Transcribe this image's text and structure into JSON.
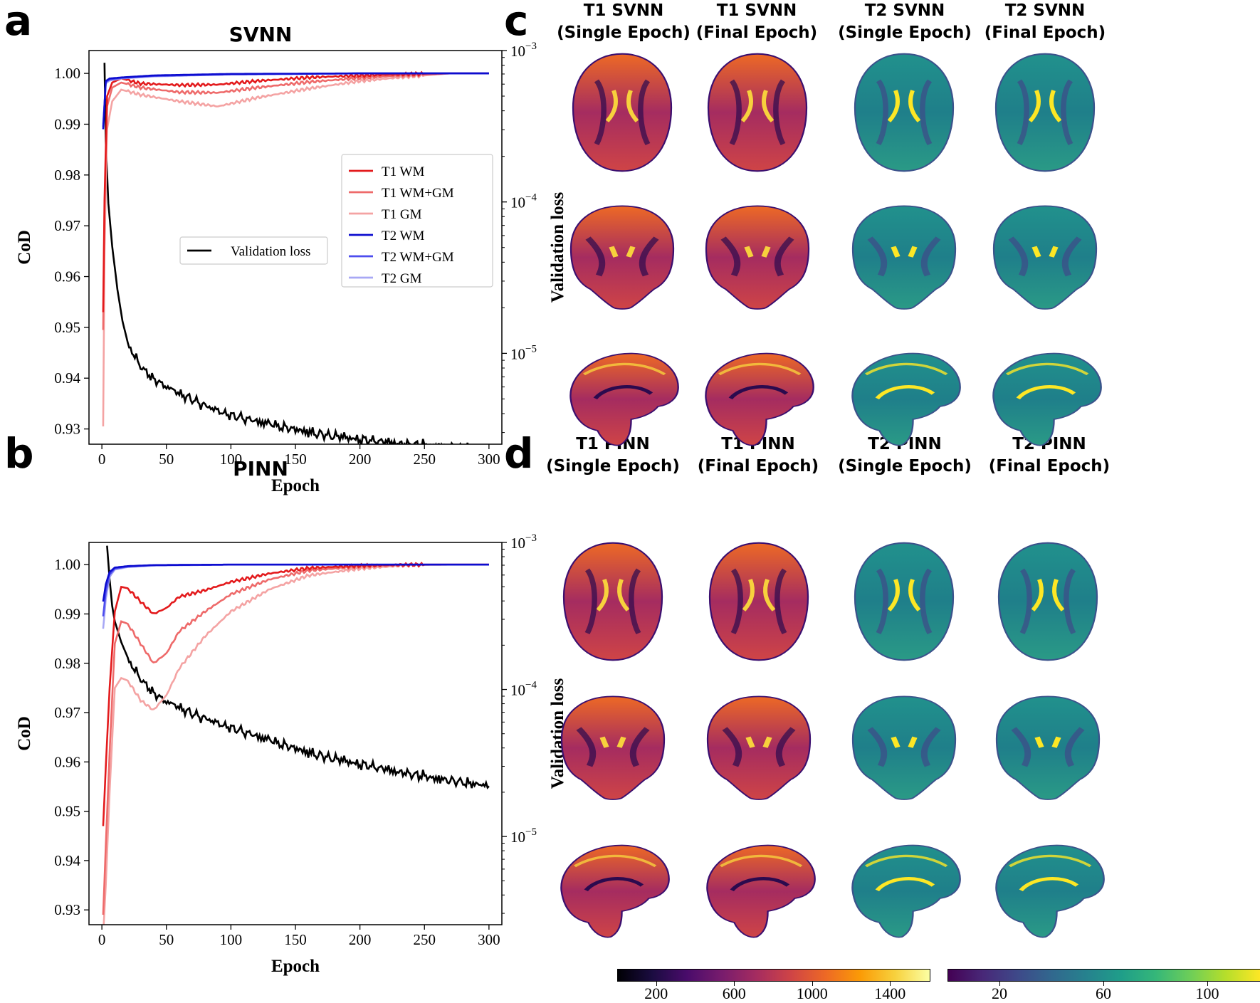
{
  "panels": {
    "a": "a",
    "b": "b",
    "c": "c",
    "d": "d"
  },
  "chart_data": [
    {
      "id": "svnn",
      "type": "line",
      "title": "SVNN",
      "xlabel": "Epoch",
      "ylabel": "CoD",
      "y2label": "Validation loss",
      "xlim": [
        -10,
        310
      ],
      "ylim": [
        0.927,
        1.0045
      ],
      "y2_log_lim": [
        -5.6,
        -3.0
      ],
      "xticks": [
        0,
        50,
        100,
        150,
        200,
        250,
        300
      ],
      "yticks": [
        "0.93",
        "0.94",
        "0.95",
        "0.96",
        "0.97",
        "0.98",
        "0.99",
        "1.00"
      ],
      "y2ticks": [
        {
          "exp": -5,
          "label": "10",
          "sup": "−5"
        },
        {
          "exp": -4,
          "label": "10",
          "sup": "−4"
        },
        {
          "exp": -3,
          "label": "10",
          "sup": "−3"
        }
      ],
      "legend_right": [
        "T1 WM",
        "T1 WM+GM",
        "T1 GM",
        "T2 WM",
        "T2 WM+GM",
        "T2 GM"
      ],
      "legend_left": [
        "Validation loss"
      ],
      "series": [
        {
          "name": "T1 WM",
          "color": "#e31a1c",
          "axis": "left",
          "x": [
            1,
            2,
            4,
            8,
            15,
            30,
            60,
            90,
            120,
            160,
            200,
            240,
            270,
            300
          ],
          "values": [
            0.953,
            0.975,
            0.9955,
            0.9982,
            0.999,
            0.998,
            0.9977,
            0.9978,
            0.9985,
            0.9992,
            0.9996,
            0.9999,
            1.0,
            1.0
          ]
        },
        {
          "name": "T1 WM+GM",
          "color": "#ee6a6a",
          "axis": "left",
          "x": [
            1,
            2,
            4,
            8,
            15,
            30,
            60,
            90,
            120,
            160,
            200,
            240,
            270,
            300
          ],
          "values": [
            0.9495,
            0.973,
            0.9935,
            0.9972,
            0.9982,
            0.9972,
            0.9963,
            0.9962,
            0.9972,
            0.9983,
            0.9991,
            0.9997,
            1.0,
            1.0
          ]
        },
        {
          "name": "T1 GM",
          "color": "#f4a3a3",
          "axis": "left",
          "x": [
            1,
            2,
            4,
            8,
            15,
            30,
            60,
            90,
            120,
            160,
            200,
            240,
            270,
            300
          ],
          "values": [
            0.9305,
            0.965,
            0.989,
            0.9945,
            0.9968,
            0.9958,
            0.9945,
            0.9935,
            0.9952,
            0.997,
            0.9985,
            0.9994,
            1.0,
            1.0
          ]
        },
        {
          "name": "T2 WM",
          "color": "#0c0ccf",
          "axis": "left",
          "x": [
            1,
            3,
            6,
            15,
            40,
            100,
            200,
            300
          ],
          "values": [
            0.989,
            0.9985,
            0.999,
            0.9992,
            0.9996,
            0.9999,
            1.0,
            1.0
          ]
        },
        {
          "name": "T2 WM+GM",
          "color": "#4d4dee",
          "axis": "left",
          "x": [
            1,
            3,
            6,
            15,
            40,
            100,
            200,
            300
          ],
          "values": [
            0.9895,
            0.9983,
            0.9988,
            0.9991,
            0.9995,
            0.9998,
            1.0,
            1.0
          ]
        },
        {
          "name": "T2 GM",
          "color": "#a8a8f5",
          "axis": "left",
          "x": [
            1,
            3,
            6,
            15,
            40,
            100,
            200,
            300
          ],
          "values": [
            0.99,
            0.998,
            0.9986,
            0.999,
            0.9994,
            0.9998,
            1.0,
            1.0
          ]
        },
        {
          "name": "Validation loss",
          "color": "#000000",
          "axis": "right",
          "log": true,
          "x": [
            2,
            3,
            5,
            8,
            12,
            16,
            20,
            30,
            40,
            60,
            80,
            100,
            130,
            160,
            200,
            240,
            270,
            300
          ],
          "values": [
            0.00083,
            0.00025,
            9.8e-05,
            5.1e-05,
            2.65e-05,
            1.63e-05,
            1.18e-05,
            8.2e-06,
            6.8e-06,
            5.4e-06,
            4.5e-06,
            3.9e-06,
            3.4e-06,
            3e-06,
            2.7e-06,
            2.5e-06,
            2.4e-06,
            2.3e-06
          ]
        }
      ]
    },
    {
      "id": "pinn",
      "type": "line",
      "title": "PINN",
      "xlabel": "Epoch",
      "ylabel": "CoD",
      "y2label": "Validation loss",
      "xlim": [
        -10,
        310
      ],
      "ylim": [
        0.927,
        1.0045
      ],
      "y2_log_lim": [
        -5.6,
        -3.0
      ],
      "xticks": [
        0,
        50,
        100,
        150,
        200,
        250,
        300
      ],
      "yticks": [
        "0.93",
        "0.94",
        "0.95",
        "0.96",
        "0.97",
        "0.98",
        "0.99",
        "1.00"
      ],
      "y2ticks": [
        {
          "exp": -5,
          "label": "10",
          "sup": "−5"
        },
        {
          "exp": -4,
          "label": "10",
          "sup": "−4"
        },
        {
          "exp": -3,
          "label": "10",
          "sup": "−3"
        }
      ],
      "series": [
        {
          "name": "T1 WM",
          "color": "#e31a1c",
          "axis": "left",
          "x": [
            1,
            3,
            6,
            10,
            15,
            20,
            30,
            40,
            50,
            60,
            80,
            100,
            130,
            160,
            200,
            240,
            270,
            300
          ],
          "values": [
            0.947,
            0.959,
            0.975,
            0.9905,
            0.9955,
            0.9952,
            0.9925,
            0.99,
            0.9912,
            0.9935,
            0.9948,
            0.9965,
            0.9982,
            0.9993,
            0.9998,
            1.0,
            1.0,
            1.0
          ]
        },
        {
          "name": "T1 WM+GM",
          "color": "#ee6a6a",
          "axis": "left",
          "x": [
            1,
            3,
            6,
            10,
            15,
            20,
            30,
            40,
            50,
            60,
            80,
            100,
            130,
            160,
            200,
            240,
            270,
            300
          ],
          "values": [
            0.929,
            0.943,
            0.962,
            0.984,
            0.9885,
            0.988,
            0.984,
            0.98,
            0.982,
            0.9865,
            0.9905,
            0.994,
            0.997,
            0.9988,
            0.9996,
            1.0,
            1.0,
            1.0
          ]
        },
        {
          "name": "T1 GM",
          "color": "#f4a3a3",
          "axis": "left",
          "x": [
            1,
            3,
            6,
            10,
            15,
            20,
            30,
            40,
            50,
            60,
            80,
            100,
            130,
            160,
            200,
            240,
            270,
            300
          ],
          "values": [
            0.925,
            0.935,
            0.954,
            0.975,
            0.977,
            0.9765,
            0.9725,
            0.9705,
            0.9735,
            0.979,
            0.9855,
            0.9905,
            0.995,
            0.9978,
            0.9992,
            0.9999,
            1.0,
            1.0
          ]
        },
        {
          "name": "T2 WM",
          "color": "#0c0ccf",
          "axis": "left",
          "x": [
            1,
            3,
            6,
            10,
            20,
            40,
            100,
            200,
            300
          ],
          "values": [
            0.9925,
            0.996,
            0.9985,
            0.9994,
            0.9997,
            0.9999,
            1.0,
            1.0,
            1.0
          ]
        },
        {
          "name": "T2 WM+GM",
          "color": "#4d4dee",
          "axis": "left",
          "x": [
            1,
            3,
            6,
            10,
            20,
            40,
            100,
            200,
            300
          ],
          "values": [
            0.9895,
            0.9945,
            0.998,
            0.9992,
            0.9996,
            0.9999,
            1.0,
            1.0,
            1.0
          ]
        },
        {
          "name": "T2 GM",
          "color": "#a8a8f5",
          "axis": "left",
          "x": [
            1,
            3,
            6,
            10,
            20,
            40,
            100,
            200,
            300
          ],
          "values": [
            0.987,
            0.993,
            0.9975,
            0.999,
            0.9995,
            0.9998,
            1.0,
            1.0,
            1.0
          ]
        },
        {
          "name": "Validation loss",
          "color": "#000000",
          "axis": "right",
          "log": true,
          "x": [
            4,
            6,
            8,
            10,
            15,
            20,
            30,
            40,
            50,
            70,
            100,
            130,
            160,
            200,
            240,
            270,
            300
          ],
          "values": [
            0.00095,
            0.00056,
            0.00037,
            0.00029,
            0.00021,
            0.000165,
            0.000118,
            9.5e-05,
            8.3e-05,
            6.8e-05,
            5.5e-05,
            4.5e-05,
            3.7e-05,
            3.1e-05,
            2.65e-05,
            2.4e-05,
            2.2e-05
          ]
        }
      ]
    }
  ],
  "image_grid": {
    "c": {
      "headers": [
        {
          "line1": "T1 SVNN",
          "line2": "(Single Epoch)"
        },
        {
          "line1": "T1 SVNN",
          "line2": "(Final Epoch)"
        },
        {
          "line1": "T2 SVNN",
          "line2": "(Single Epoch)"
        },
        {
          "line1": "T2 SVNN",
          "line2": "(Final Epoch)"
        }
      ]
    },
    "d": {
      "headers": [
        {
          "line1": "T1 PINN",
          "line2": "(Single Epoch)"
        },
        {
          "line1": "T1 PINN",
          "line2": "(Final Epoch)"
        },
        {
          "line1": "T2 PINN",
          "line2": "(Single Epoch)"
        },
        {
          "line1": "T2 PINN",
          "line2": "(Final Epoch)"
        }
      ]
    },
    "views": [
      "axial",
      "coronal",
      "sagittal"
    ],
    "colormaps": {
      "t1": "inferno",
      "t2": "viridis"
    }
  },
  "colorbars": {
    "t1": {
      "min": 0,
      "max": 1600,
      "ticks": [
        200,
        600,
        1000,
        1400
      ],
      "colors": [
        "#000004",
        "#1b0c41",
        "#4a0c6b",
        "#781c6d",
        "#a52c60",
        "#cf4446",
        "#ed6925",
        "#fb9b06",
        "#f7d13d",
        "#fcffa4"
      ]
    },
    "t2": {
      "min": 0,
      "max": 120,
      "ticks": [
        20,
        60,
        100
      ],
      "colors": [
        "#440154",
        "#482878",
        "#3e4989",
        "#31688e",
        "#26828e",
        "#1f9e89",
        "#35b779",
        "#6ece58",
        "#b5de2b",
        "#fde725"
      ]
    }
  }
}
